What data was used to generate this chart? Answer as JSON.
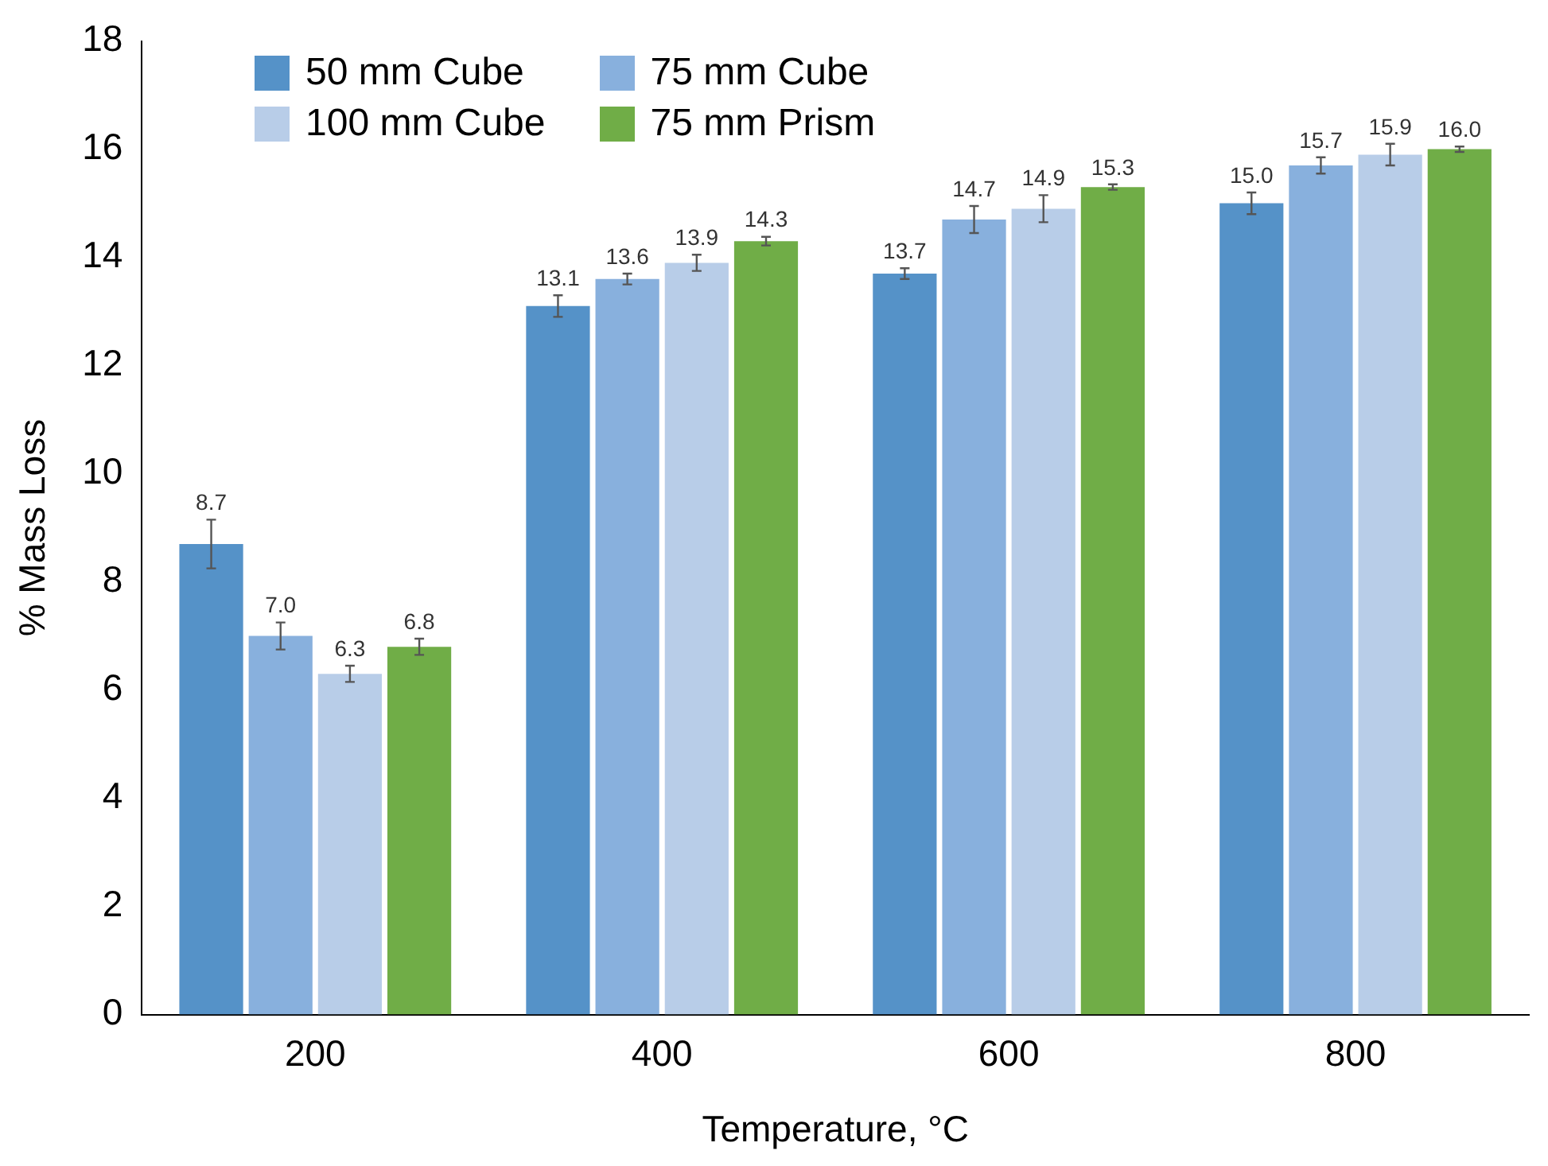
{
  "chart_data": {
    "type": "bar",
    "xlabel": "Temperature, °C",
    "ylabel": "% Mass Loss",
    "categories": [
      "200",
      "400",
      "600",
      "800"
    ],
    "series": [
      {
        "name": "50 mm Cube",
        "color": "#5592c8",
        "values": [
          8.7,
          13.1,
          13.7,
          15.0
        ],
        "errors": [
          0.45,
          0.2,
          0.1,
          0.2
        ],
        "value_labels": [
          "8.7",
          "13.1",
          "13.7",
          "15.0"
        ]
      },
      {
        "name": "75 mm Cube",
        "color": "#88b0dd",
        "values": [
          7.0,
          13.6,
          14.7,
          15.7
        ],
        "errors": [
          0.25,
          0.1,
          0.25,
          0.15
        ],
        "value_labels": [
          "7.0",
          "13.6",
          "14.7",
          "15.7"
        ]
      },
      {
        "name": "100 mm Cube",
        "color": "#b8cde8",
        "values": [
          6.3,
          13.9,
          14.9,
          15.9
        ],
        "errors": [
          0.15,
          0.15,
          0.25,
          0.2
        ],
        "value_labels": [
          "6.3",
          "13.9",
          "14.9",
          "15.9"
        ]
      },
      {
        "name": "75 mm Prism",
        "color": "#70ad47",
        "values": [
          6.8,
          14.3,
          15.3,
          16.0
        ],
        "errors": [
          0.15,
          0.08,
          0.05,
          0.05
        ],
        "value_labels": [
          "6.8",
          "14.3",
          "15.3",
          "16.0"
        ]
      }
    ],
    "ylim": [
      0,
      18
    ],
    "yticks": [
      0,
      2,
      4,
      6,
      8,
      10,
      12,
      14,
      16,
      18
    ],
    "grid": false,
    "legend": "top left"
  }
}
